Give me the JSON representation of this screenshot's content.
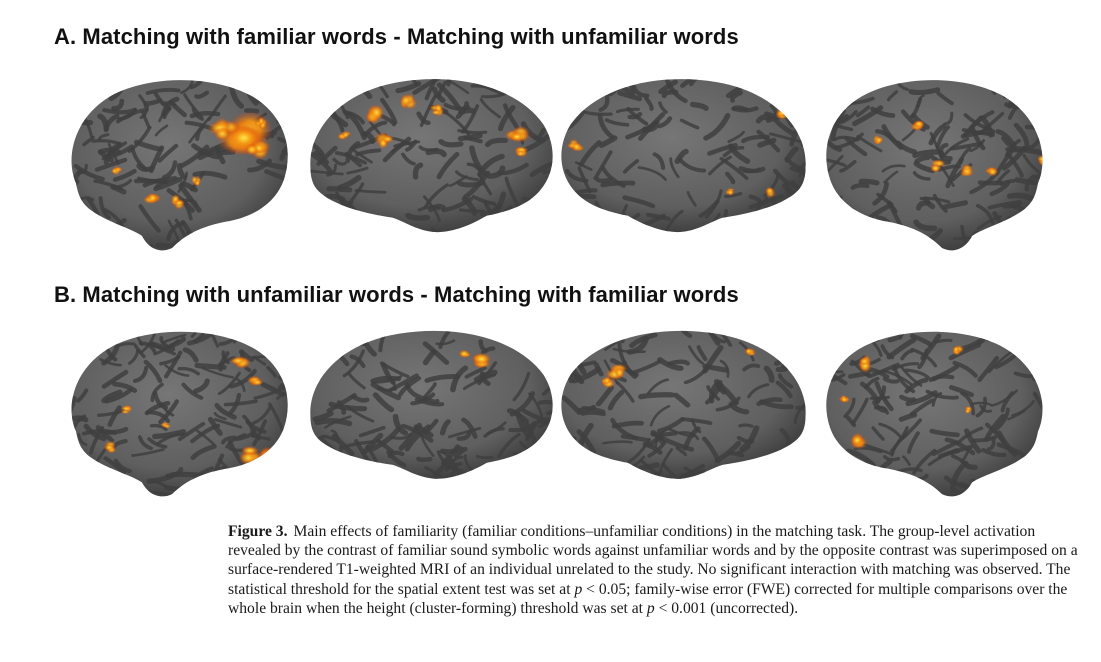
{
  "figure": {
    "panel_a": {
      "title": "A. Matching with familiar words - Matching with unfamiliar words",
      "views": [
        "left-lateral",
        "left-medial",
        "right-medial",
        "right-lateral"
      ]
    },
    "panel_b": {
      "title": "B. Matching with unfamiliar words - Matching with familiar words",
      "views": [
        "left-lateral",
        "left-medial",
        "right-medial",
        "right-lateral"
      ]
    },
    "colors": {
      "cortex": "#5f5f5f",
      "sulcus": "#3f3f3f",
      "activation_low": "#d8400a",
      "activation_mid": "#f59a12",
      "activation_high": "#ffe84a"
    }
  },
  "caption": {
    "label": "Figure 3.",
    "part1": "Main effects of familiarity (familiar conditions–unfamiliar conditions) in the matching task. The group-level activation revealed by the contrast of familiar sound symbolic words against unfamiliar words and by the opposite contrast was superimposed on a surface-rendered T1-weighted MRI of an individual unrelated to the study. No significant interaction with matching was observed. The statistical threshold for the spatial extent test was set at ",
    "p_symbol_1": "p",
    "part2": " < 0.05; family-wise error (FWE) corrected for multiple comparisons over the whole brain when the height (cluster-forming) threshold was set at ",
    "p_symbol_2": "p",
    "part3": " < 0.001 (uncorrected)."
  }
}
